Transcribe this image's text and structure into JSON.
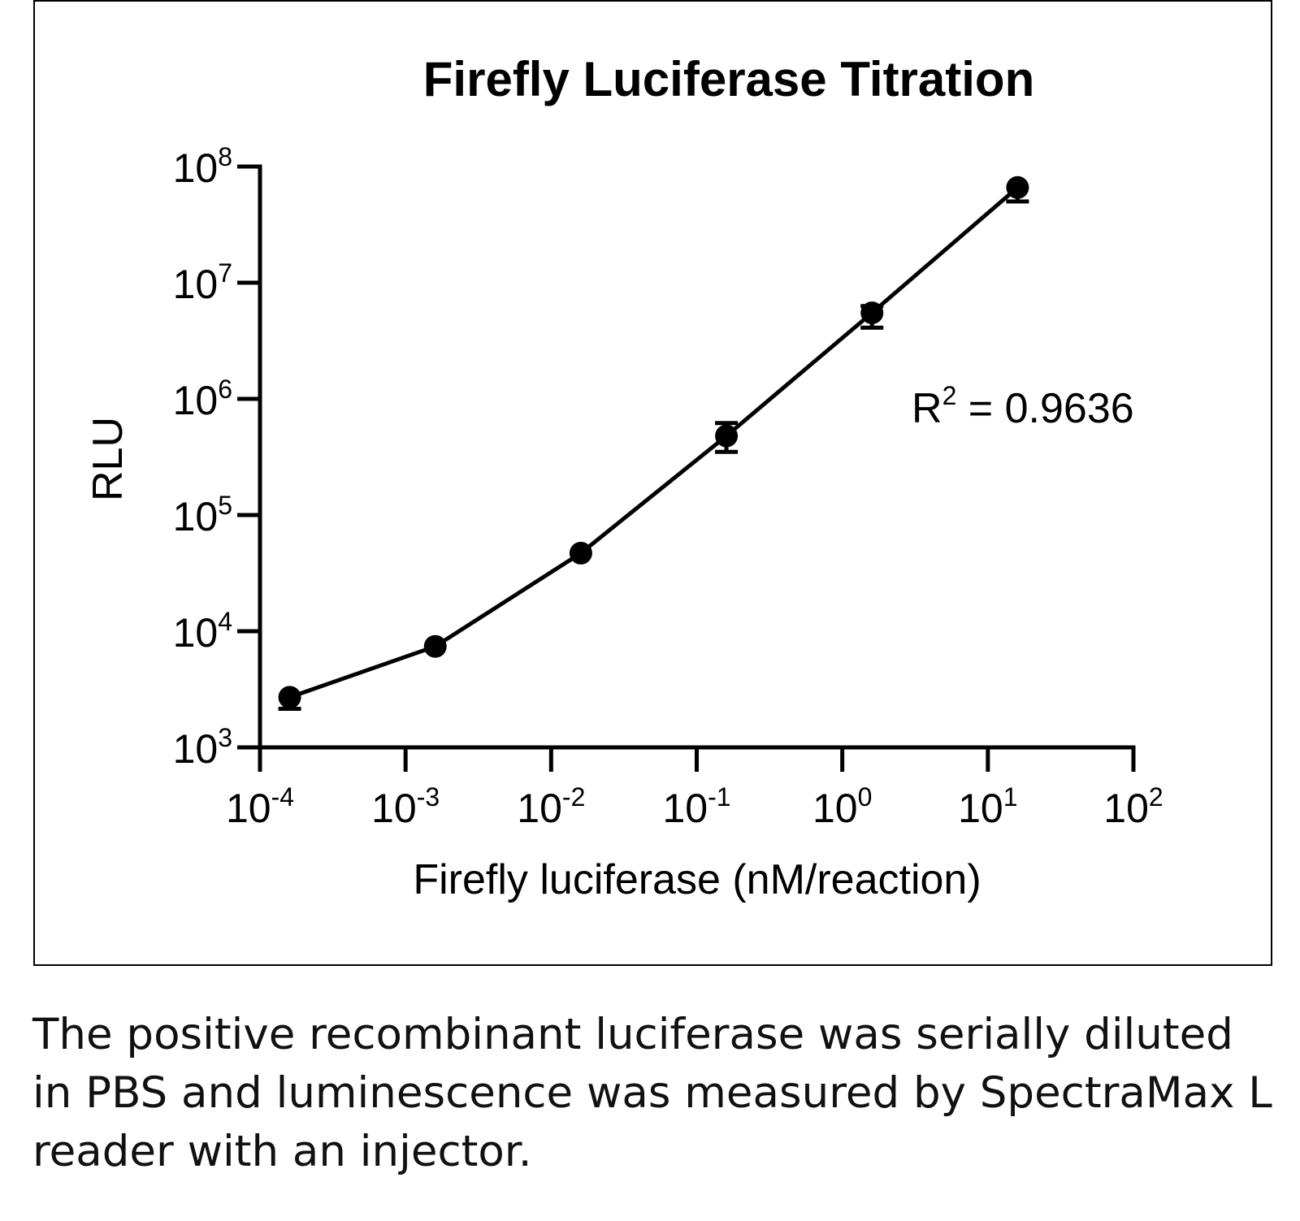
{
  "chart_data": {
    "type": "line",
    "title": "Firefly Luciferase Titration",
    "xlabel": "Firefly luciferase (nM/reaction)",
    "ylabel": "RLU",
    "x_scale": "log",
    "y_scale": "log",
    "xlim": [
      0.0001,
      100
    ],
    "ylim": [
      1000,
      100000000
    ],
    "x_ticks": [
      {
        "base": "10",
        "exp": "-4",
        "value": 0.0001
      },
      {
        "base": "10",
        "exp": "-3",
        "value": 0.001
      },
      {
        "base": "10",
        "exp": "-2",
        "value": 0.01
      },
      {
        "base": "10",
        "exp": "-1",
        "value": 0.1
      },
      {
        "base": "10",
        "exp": "0",
        "value": 1
      },
      {
        "base": "10",
        "exp": "1",
        "value": 10
      },
      {
        "base": "10",
        "exp": "2",
        "value": 100
      }
    ],
    "y_ticks": [
      {
        "base": "10",
        "exp": "8",
        "value": 100000000
      },
      {
        "base": "10",
        "exp": "7",
        "value": 10000000
      },
      {
        "base": "10",
        "exp": "6",
        "value": 1000000
      },
      {
        "base": "10",
        "exp": "5",
        "value": 100000
      },
      {
        "base": "10",
        "exp": "4",
        "value": 10000
      },
      {
        "base": "10",
        "exp": "3",
        "value": 1000
      }
    ],
    "points": [
      {
        "x": 0.00016,
        "y": 2700,
        "err_low": 2150,
        "err_high": 2700
      },
      {
        "x": 0.0016,
        "y": 7400,
        "err_low": 7400,
        "err_high": 7400
      },
      {
        "x": 0.016,
        "y": 47000,
        "err_low": 47000,
        "err_high": 47000
      },
      {
        "x": 0.16,
        "y": 480000,
        "err_low": 350000,
        "err_high": 620000
      },
      {
        "x": 1.6,
        "y": 5500000,
        "err_low": 4100000,
        "err_high": 6300000
      },
      {
        "x": 16,
        "y": 66000000,
        "err_low": 50000000,
        "err_high": 66000000
      }
    ],
    "annotation": {
      "text_main": "R",
      "text_sup": "2",
      "text_rest": " = 0.9636"
    },
    "grid": false,
    "legend": "none",
    "color": "#000000"
  },
  "caption": "The positive recombinant luciferase was serially diluted in PBS and luminescence was measured by SpectraMax L reader with an injector."
}
